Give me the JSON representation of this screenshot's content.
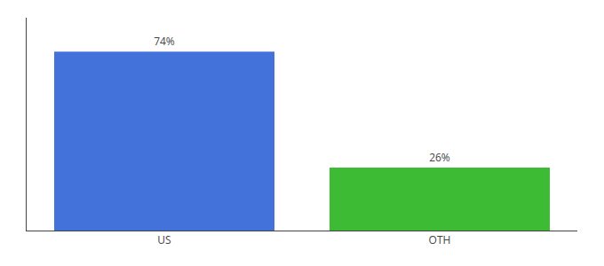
{
  "chart_data": {
    "type": "bar",
    "categories": [
      "US",
      "OTH"
    ],
    "values": [
      74,
      26
    ],
    "value_labels": [
      "74%",
      "26%"
    ],
    "colors": [
      "#4472db",
      "#3dbb35"
    ],
    "ylim": [
      0,
      88
    ],
    "data_labels": true,
    "tick_labels": "x",
    "grid": false
  }
}
